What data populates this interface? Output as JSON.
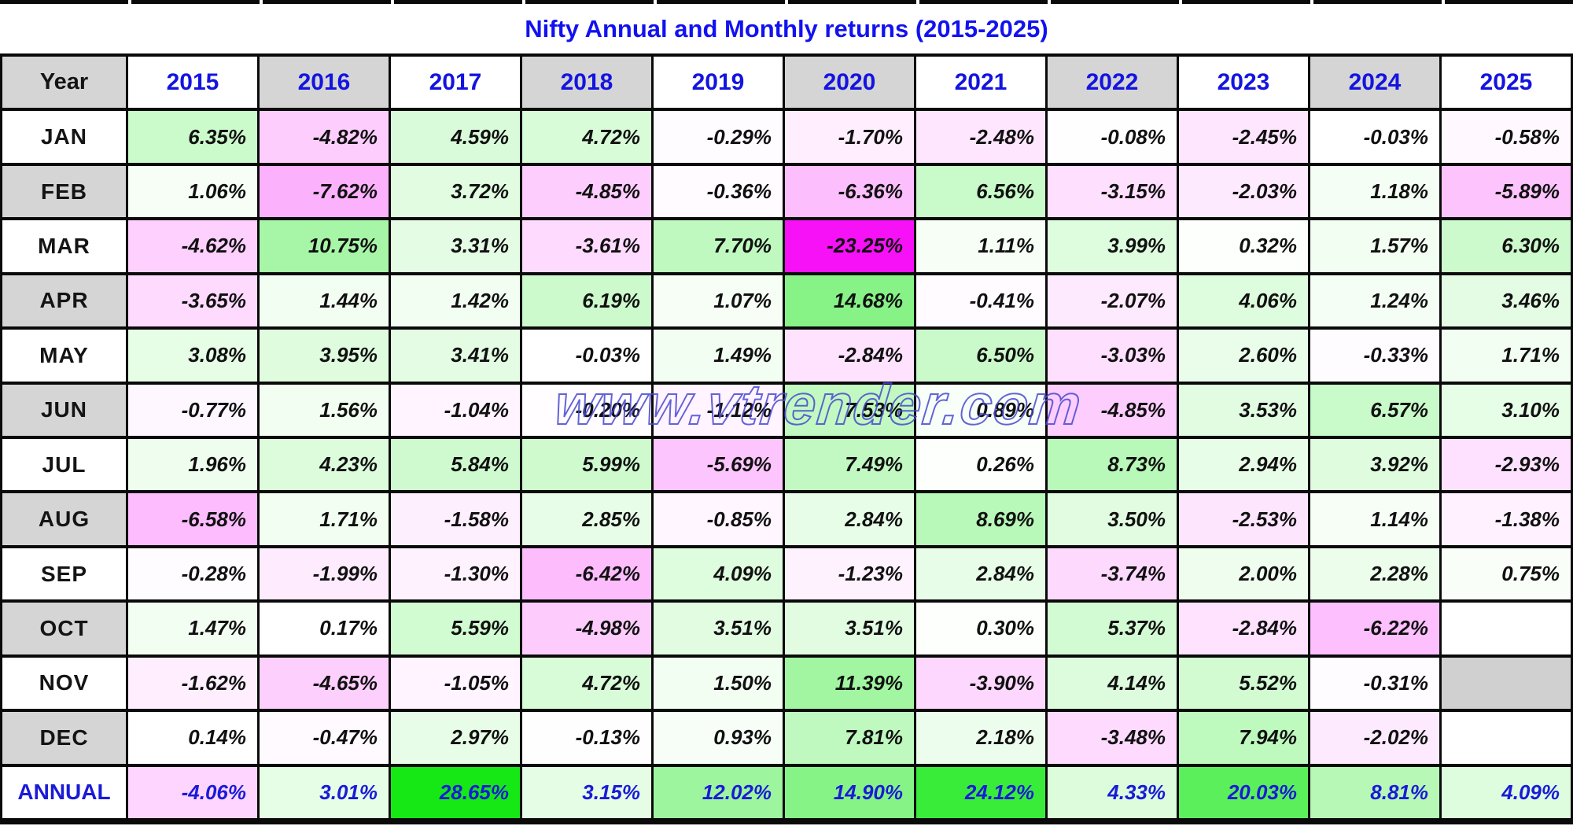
{
  "title": "Nifty Annual and Monthly returns (2015-2025)",
  "watermark": "www.vtrender.com",
  "colors": {
    "background": "#ffffff",
    "border_black": "#0a0a0a",
    "header_gray": "#d5d5d5",
    "missing_cell_gray": "#d0d0d0",
    "header_text_blue": "#1414e0",
    "title_blue": "#1212f0",
    "annual_text_blue": "#1a1ad8",
    "value_text_black": "#111111",
    "watermark_blue": "#4848cf",
    "positive_green_max": "#15e815",
    "negative_magenta_max": "#f711f7"
  },
  "chart_data": {
    "type": "heatmap",
    "title": "Nifty Annual and Monthly returns (2015-2025)",
    "corner_label": "Year",
    "columns": [
      "2015",
      "2016",
      "2017",
      "2018",
      "2019",
      "2020",
      "2021",
      "2022",
      "2023",
      "2024",
      "2025"
    ],
    "value_format": "percent_2dp",
    "color_scale": {
      "neutral_color": "#ffffff",
      "positive_color": "#15e815",
      "positive_max_value": 28.65,
      "negative_color": "#f711f7",
      "negative_max_value": 23.25
    },
    "rows": [
      {
        "label": "JAN",
        "values": [
          6.35,
          -4.82,
          4.59,
          4.72,
          -0.29,
          -1.7,
          -2.48,
          -0.08,
          -2.45,
          -0.03,
          -0.58
        ],
        "missing_fill": "#ffffff"
      },
      {
        "label": "FEB",
        "values": [
          1.06,
          -7.62,
          3.72,
          -4.85,
          -0.36,
          -6.36,
          6.56,
          -3.15,
          -2.03,
          1.18,
          -5.89
        ],
        "missing_fill": "#ffffff"
      },
      {
        "label": "MAR",
        "values": [
          -4.62,
          10.75,
          3.31,
          -3.61,
          7.7,
          -23.25,
          1.11,
          3.99,
          0.32,
          1.57,
          6.3
        ],
        "missing_fill": "#ffffff"
      },
      {
        "label": "APR",
        "values": [
          -3.65,
          1.44,
          1.42,
          6.19,
          1.07,
          14.68,
          -0.41,
          -2.07,
          4.06,
          1.24,
          3.46
        ],
        "missing_fill": "#ffffff"
      },
      {
        "label": "MAY",
        "values": [
          3.08,
          3.95,
          3.41,
          -0.03,
          1.49,
          -2.84,
          6.5,
          -3.03,
          2.6,
          -0.33,
          1.71
        ],
        "missing_fill": "#ffffff"
      },
      {
        "label": "JUN",
        "values": [
          -0.77,
          1.56,
          -1.04,
          -0.2,
          -1.12,
          7.53,
          0.89,
          -4.85,
          3.53,
          6.57,
          3.1
        ],
        "missing_fill": "#ffffff"
      },
      {
        "label": "JUL",
        "values": [
          1.96,
          4.23,
          5.84,
          5.99,
          -5.69,
          7.49,
          0.26,
          8.73,
          2.94,
          3.92,
          -2.93
        ],
        "missing_fill": "#ffffff"
      },
      {
        "label": "AUG",
        "values": [
          -6.58,
          1.71,
          -1.58,
          2.85,
          -0.85,
          2.84,
          8.69,
          3.5,
          -2.53,
          1.14,
          -1.38
        ],
        "missing_fill": "#ffffff"
      },
      {
        "label": "SEP",
        "values": [
          -0.28,
          -1.99,
          -1.3,
          -6.42,
          4.09,
          -1.23,
          2.84,
          -3.74,
          2.0,
          2.28,
          0.75
        ],
        "missing_fill": "#ffffff"
      },
      {
        "label": "OCT",
        "values": [
          1.47,
          0.17,
          5.59,
          -4.98,
          3.51,
          3.51,
          0.3,
          5.37,
          -2.84,
          -6.22,
          null
        ],
        "missing_fill": "#ffffff"
      },
      {
        "label": "NOV",
        "values": [
          -1.62,
          -4.65,
          -1.05,
          4.72,
          1.5,
          11.39,
          -3.9,
          4.14,
          5.52,
          -0.31,
          null
        ],
        "missing_fill": "#d0d0d0"
      },
      {
        "label": "DEC",
        "values": [
          0.14,
          -0.47,
          2.97,
          -0.13,
          0.93,
          7.81,
          2.18,
          -3.48,
          7.94,
          -2.02,
          null
        ],
        "missing_fill": "#ffffff"
      },
      {
        "label": "ANNUAL",
        "values": [
          -4.06,
          3.01,
          28.65,
          3.15,
          12.02,
          14.9,
          24.12,
          4.33,
          20.03,
          8.81,
          4.09
        ],
        "missing_fill": "#ffffff"
      }
    ]
  }
}
